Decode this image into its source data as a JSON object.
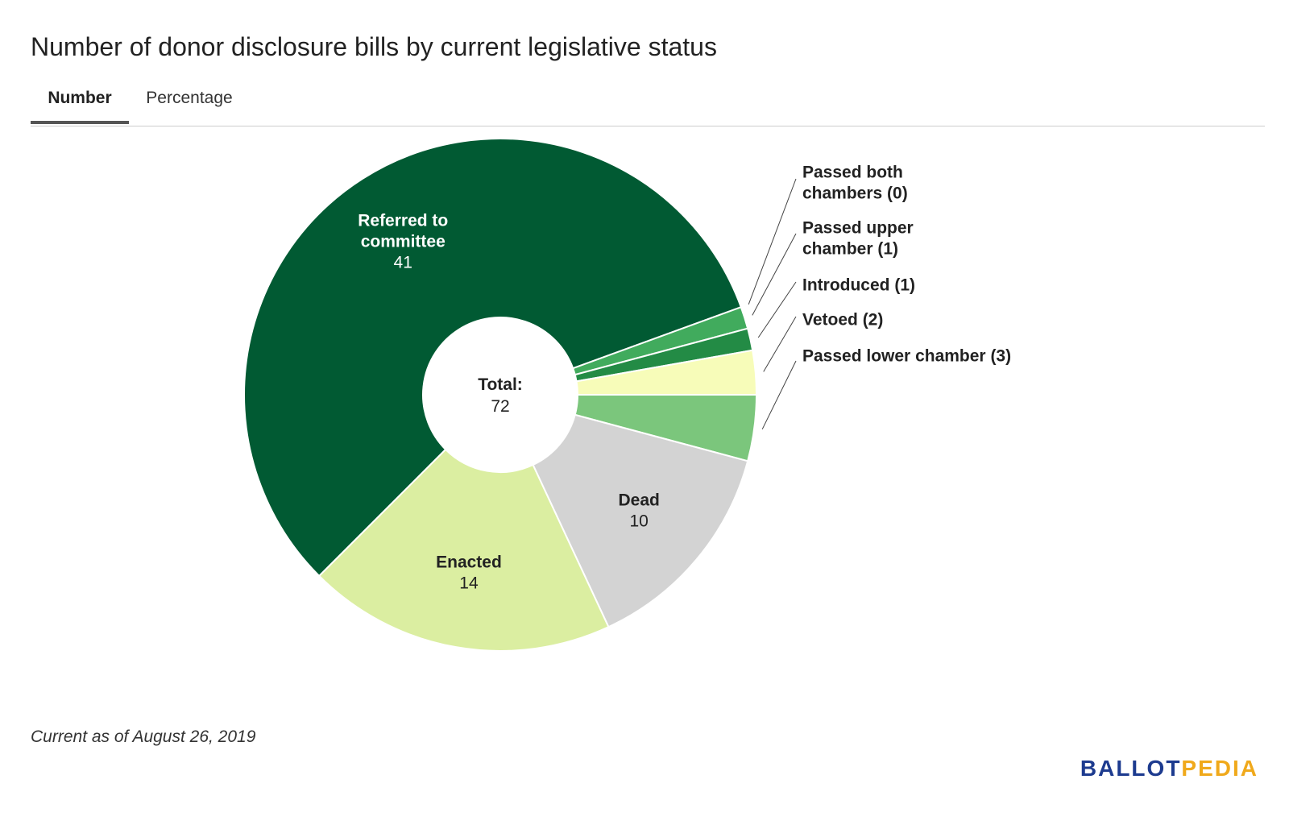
{
  "title": "Number of donor disclosure bills by current legislative status",
  "tabs": [
    {
      "label": "Number",
      "active": true
    },
    {
      "label": "Percentage",
      "active": false
    }
  ],
  "chart_data": {
    "type": "pie",
    "donut": true,
    "center_label": "Total:",
    "center_value": "72",
    "start_angle_deg": 0,
    "slices": [
      {
        "label": "Passed lower chamber (3)",
        "value": 3,
        "color": "#7bc67c",
        "label_position": "outside"
      },
      {
        "label": "Dead",
        "value": 10,
        "color": "#d3d3d3",
        "label_position": "inside",
        "value_label": "10"
      },
      {
        "label": "Enacted",
        "value": 14,
        "color": "#dbeea1",
        "label_position": "inside",
        "value_label": "14"
      },
      {
        "label": "Referred to committee",
        "value": 41,
        "color": "#015a33",
        "label_position": "inside",
        "value_label": "41",
        "label_lines": [
          "Referred to",
          "committee"
        ],
        "label_color": "#ffffff"
      },
      {
        "label": "Passed both chambers (0)",
        "value": 0,
        "color": "#3d9b58",
        "label_position": "outside",
        "label_lines": [
          "Passed both",
          "chambers (0)"
        ]
      },
      {
        "label": "Passed upper chamber (1)",
        "value": 1,
        "color": "#41ab5d",
        "label_position": "outside",
        "label_lines": [
          "Passed upper",
          "chamber (1)"
        ]
      },
      {
        "label": "Introduced (1)",
        "value": 1,
        "color": "#238b45",
        "label_position": "outside",
        "label_lines": [
          "Introduced (1)"
        ]
      },
      {
        "label": "Vetoed (2)",
        "value": 2,
        "color": "#f7fcb9",
        "label_position": "outside",
        "label_lines": [
          "Vetoed (2)"
        ]
      }
    ]
  },
  "footnote": "Current as of August 26, 2019",
  "logo": {
    "part1": "BALLOT",
    "part2": "PEDIA"
  }
}
